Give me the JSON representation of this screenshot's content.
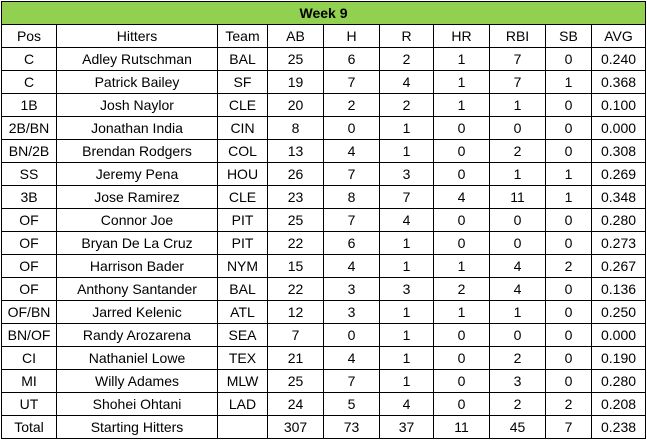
{
  "title": "Week 9",
  "headers": [
    "Pos",
    "Hitters",
    "Team",
    "AB",
    "H",
    "R",
    "HR",
    "RBI",
    "SB",
    "AVG"
  ],
  "rows": [
    [
      "C",
      "Adley Rutschman",
      "BAL",
      "25",
      "6",
      "2",
      "1",
      "7",
      "0",
      "0.240"
    ],
    [
      "C",
      "Patrick Bailey",
      "SF",
      "19",
      "7",
      "4",
      "1",
      "7",
      "1",
      "0.368"
    ],
    [
      "1B",
      "Josh Naylor",
      "CLE",
      "20",
      "2",
      "2",
      "1",
      "1",
      "0",
      "0.100"
    ],
    [
      "2B/BN",
      "Jonathan India",
      "CIN",
      "8",
      "0",
      "1",
      "0",
      "0",
      "0",
      "0.000"
    ],
    [
      "BN/2B",
      "Brendan Rodgers",
      "COL",
      "13",
      "4",
      "1",
      "0",
      "2",
      "0",
      "0.308"
    ],
    [
      "SS",
      "Jeremy Pena",
      "HOU",
      "26",
      "7",
      "3",
      "0",
      "1",
      "1",
      "0.269"
    ],
    [
      "3B",
      "Jose Ramirez",
      "CLE",
      "23",
      "8",
      "7",
      "4",
      "11",
      "1",
      "0.348"
    ],
    [
      "OF",
      "Connor Joe",
      "PIT",
      "25",
      "7",
      "4",
      "0",
      "0",
      "0",
      "0.280"
    ],
    [
      "OF",
      "Bryan De La Cruz",
      "PIT",
      "22",
      "6",
      "1",
      "0",
      "0",
      "0",
      "0.273"
    ],
    [
      "OF",
      "Harrison Bader",
      "NYM",
      "15",
      "4",
      "1",
      "1",
      "4",
      "2",
      "0.267"
    ],
    [
      "OF",
      "Anthony Santander",
      "BAL",
      "22",
      "3",
      "3",
      "2",
      "4",
      "0",
      "0.136"
    ],
    [
      "OF/BN",
      "Jarred Kelenic",
      "ATL",
      "12",
      "3",
      "1",
      "1",
      "1",
      "0",
      "0.250"
    ],
    [
      "BN/OF",
      "Randy Arozarena",
      "SEA",
      "7",
      "0",
      "1",
      "0",
      "0",
      "0",
      "0.000"
    ],
    [
      "CI",
      "Nathaniel Lowe",
      "TEX",
      "21",
      "4",
      "1",
      "0",
      "2",
      "0",
      "0.190"
    ],
    [
      "MI",
      "Willy Adames",
      "MLW",
      "25",
      "7",
      "1",
      "0",
      "3",
      "0",
      "0.280"
    ],
    [
      "UT",
      "Shohei Ohtani",
      "LAD",
      "24",
      "5",
      "4",
      "0",
      "2",
      "2",
      "0.208"
    ]
  ],
  "total": [
    "Total",
    "Starting Hitters",
    "",
    "307",
    "73",
    "37",
    "11",
    "45",
    "7",
    "0.238"
  ]
}
